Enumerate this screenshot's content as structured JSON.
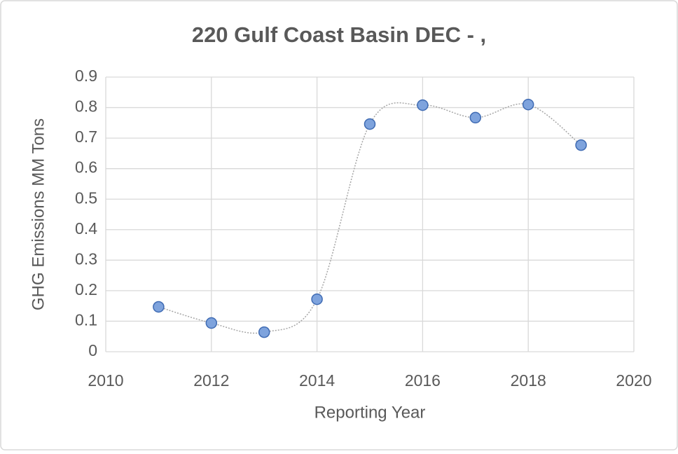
{
  "chart_data": {
    "type": "scatter",
    "title": "220 Gulf Coast Basin DEC - ,",
    "x_label": "Reporting Year",
    "y_label": "GHG Emissions MM Tons",
    "x": [
      2011,
      2012,
      2013,
      2014,
      2015,
      2016,
      2017,
      2018,
      2019
    ],
    "series": [
      {
        "name": "GHG Emissions",
        "color": "#7ea3dd",
        "values": [
          0.147,
          0.094,
          0.064,
          0.172,
          0.746,
          0.808,
          0.767,
          0.81,
          0.677
        ]
      }
    ],
    "xlim": [
      2010,
      2020
    ],
    "xticks": [
      2010,
      2012,
      2014,
      2016,
      2018,
      2020
    ],
    "ylim": [
      0,
      0.9
    ],
    "yticks": [
      0,
      0.1,
      0.2,
      0.3,
      0.4,
      0.5,
      0.6,
      0.7,
      0.8,
      0.9
    ],
    "grid": true,
    "smooth": true
  }
}
